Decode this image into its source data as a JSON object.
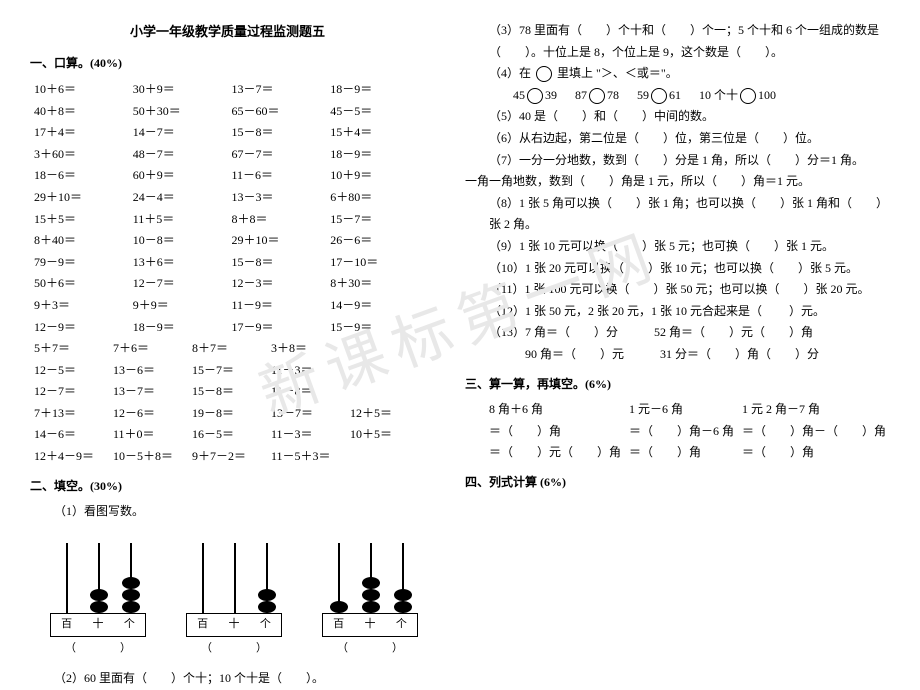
{
  "title": "小学一年级教学质量过程监测题五",
  "s1": {
    "h": "一、口算。(40%)",
    "rows": [
      [
        "10＋6＝",
        "30＋9＝",
        "13－7＝",
        "18－9＝"
      ],
      [
        "40＋8＝",
        "50＋30＝",
        "65－60＝",
        "45－5＝"
      ],
      [
        "17＋4＝",
        "14－7＝",
        "15－8＝",
        "15＋4＝"
      ],
      [
        "3＋60＝",
        "48－7＝",
        "67－7＝",
        "18－9＝"
      ],
      [
        "18－6＝",
        "60＋9＝",
        "11－6＝",
        "10＋9＝"
      ],
      [
        "29＋10＝",
        "24－4＝",
        "13－3＝",
        "6＋80＝"
      ],
      [
        "15＋5＝",
        "11＋5＝",
        "8＋8＝",
        "15－7＝"
      ],
      [
        "8＋40＝",
        "10－8＝",
        "29＋10＝",
        "26－6＝"
      ],
      [
        "79－9＝",
        "13＋6＝",
        "15－8＝",
        "17－10＝"
      ],
      [
        "50＋6＝",
        "12－7＝",
        "12－3＝",
        "8＋30＝"
      ],
      [
        "9＋3＝",
        "9＋9＝",
        "11－9＝",
        "14－9＝"
      ],
      [
        "12－9＝",
        "18－9＝",
        "17－9＝",
        "15－9＝"
      ]
    ],
    "rows5": [
      [
        "5＋7＝",
        "7＋6＝",
        "8＋7＝",
        "3＋8＝",
        ""
      ],
      [
        "12－5＝",
        "13－6＝",
        "15－7＝",
        "11－3＝",
        ""
      ],
      [
        "12－7＝",
        "13－7＝",
        "15－8＝",
        "11－8＝",
        ""
      ],
      [
        "7＋13＝",
        "12－6＝",
        "19－8＝",
        "13－7＝",
        "12＋5＝"
      ],
      [
        "14－6＝",
        "11＋0＝",
        "16－5＝",
        "11－3＝",
        "10＋5＝"
      ],
      [
        "12＋4－9＝",
        "10－5＋8＝",
        "9＋7－2＝",
        "11－5＋3＝",
        ""
      ]
    ]
  },
  "s2": {
    "h": "二、填空。(30%)",
    "q1": "（1）看图写数。",
    "abacus_labels": [
      "百",
      "十",
      "个"
    ],
    "abacus": [
      {
        "cols": [
          0,
          2,
          3
        ]
      },
      {
        "cols": [
          0,
          0,
          2
        ]
      },
      {
        "cols": [
          1,
          3,
          2
        ]
      }
    ],
    "blank": "（　　　　）",
    "q2": "（2）60 里面有（　　）个十；10 个十是（　　）。"
  },
  "right": {
    "q3": "（3）78 里面有（　　）个十和（　　）个一；5 个十和 6 个一组成的数是（　　）。十位上是 8，个位上是 9，这个数是（　　）。",
    "q4": "（4）在",
    "q4b": "里填上 \"＞、＜或＝\"。",
    "c": [
      "45",
      "39",
      "87",
      "78",
      "59",
      "61",
      "10 个十",
      "100"
    ],
    "q5": "（5）40 是（　　）和（　　）中间的数。",
    "q6": "（6）从右边起，第二位是（　　）位，第三位是（　　）位。",
    "q7": "（7）一分一分地数，数到（　　）分是 1 角，所以（　　）分＝1 角。",
    "q7b": "一角一角地数，数到（　　）角是 1 元，所以（　　）角＝1 元。",
    "q8": "（8）1 张 5 角可以换（　　）张 1 角；也可以换（　　）张 1 角和（　　）张 2 角。",
    "q9": "（9）1 张 10 元可以换（　　）张 5 元；也可换（　　）张 1 元。",
    "q10": "（10）1 张 20 元可以换（　　）张 10 元；也可以换（　　）张 5 元。",
    "q11": "（11）1 张 100 元可以换（　　）张 50 元；也可以换（　　）张 20 元。",
    "q12": "（12）1 张 50 元，2 张 20 元，1 张 10 元合起来是（　　  ）元。",
    "q13a": "（13）7 角＝（　　）分　　　52 角＝（　　）元（　　）角",
    "q13b": "　　　90 角＝（　　）元　　　31 分＝（　　）角（　　）分"
  },
  "s3": {
    "h": "三、算一算，再填空。(6%)",
    "r1": [
      "8 角＋6 角",
      "1 元－6 角",
      "1 元 2 角－7 角"
    ],
    "r2": [
      "＝（　　）角",
      "＝（　　）角－6 角",
      "＝（　　）角－（　　）角"
    ],
    "r3": [
      "＝（　　）元（　　）角",
      "＝（　　）角",
      "＝（　　）角"
    ]
  },
  "s4": {
    "h": "四、列式计算 (6%)"
  },
  "wm": "新课标第一网"
}
